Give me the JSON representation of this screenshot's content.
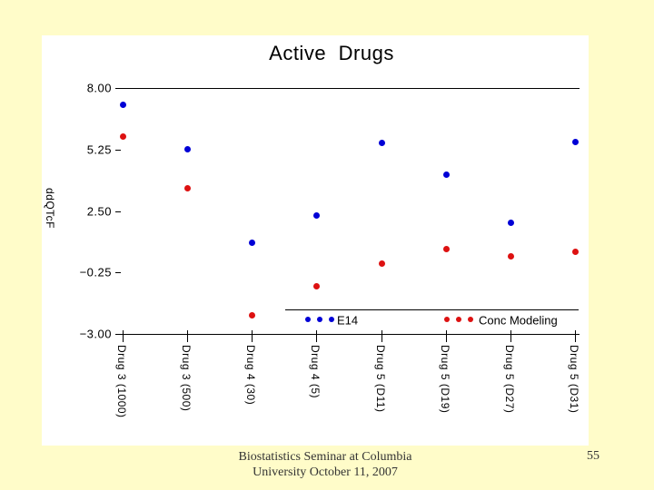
{
  "slide": {
    "footer_line1": "Biostatistics Seminar at Columbia",
    "footer_line2": "University October 11, 2007",
    "page_number": "55"
  },
  "chart_data": {
    "type": "scatter",
    "title": "Active Drugs",
    "xlabel": "",
    "ylabel": "ddQTcF",
    "ylim": [
      -3.0,
      8.0
    ],
    "y_ticks": [
      8.0,
      5.25,
      2.5,
      -0.25,
      -3.0
    ],
    "y_tick_labels": [
      "8.00",
      "5.25",
      "2.50",
      "−0.25",
      "−3.00"
    ],
    "categories": [
      "Drug 3 (1000)",
      "Drug 3 (500)",
      "Drug 4 (30)",
      "Drug 4 (5)",
      "Drug 5 (D11)",
      "Drug 5 (D19)",
      "Drug 5 (D27)",
      "Drug 5 (D31)"
    ],
    "series": [
      {
        "name": "E14",
        "color": "#0000d6",
        "values": [
          7.25,
          5.3,
          1.1,
          2.3,
          5.55,
          4.15,
          2.0,
          5.6
        ]
      },
      {
        "name": "Conc Modeling",
        "color": "#dd1111",
        "values": [
          5.85,
          3.55,
          -2.15,
          -0.85,
          0.15,
          0.8,
          0.5,
          0.7
        ]
      }
    ],
    "grid": "off",
    "legend_position": "bottom-inside"
  },
  "colors": {
    "background": "#fffcc9",
    "panel": "#ffffff",
    "axis": "#000000",
    "series_blue": "#0000d6",
    "series_red": "#dd1111"
  }
}
